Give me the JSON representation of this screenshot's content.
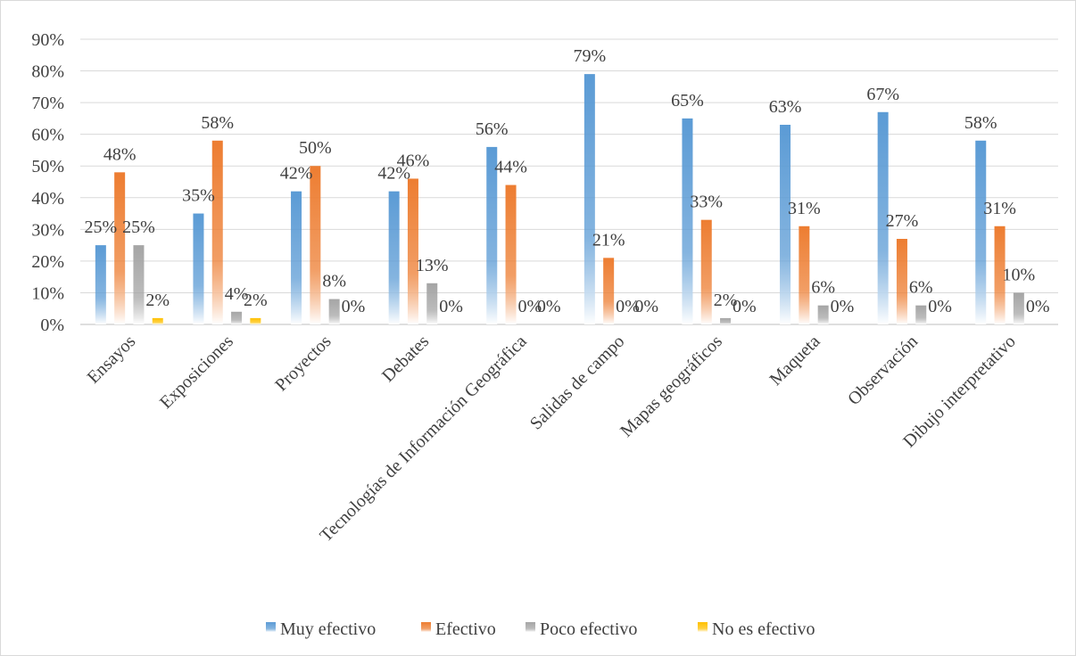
{
  "chart_data": {
    "type": "bar",
    "title": "",
    "xlabel": "",
    "ylabel": "",
    "ylim": [
      0,
      90
    ],
    "y_ticks": [
      "0%",
      "10%",
      "20%",
      "30%",
      "40%",
      "50%",
      "60%",
      "70%",
      "80%",
      "90%"
    ],
    "grid": true,
    "legend_position": "bottom",
    "categories": [
      "Ensayos",
      "Exposiciones",
      "Proyectos",
      "Debates",
      "Tecnologías de Información Geográfica",
      "Salidas de campo",
      "Mapas geográficos",
      "Maqueta",
      "Observación",
      "Dibujo interpretativo"
    ],
    "series": [
      {
        "name": "Muy efectivo",
        "color": "#5b9bd5",
        "values": [
          25,
          35,
          42,
          42,
          56,
          79,
          65,
          63,
          67,
          58
        ],
        "labels": [
          "25%",
          "35%",
          "42%",
          "42%",
          "56%",
          "79%",
          "65%",
          "63%",
          "67%",
          "58%"
        ]
      },
      {
        "name": "Efectivo",
        "color": "#ed7d31",
        "values": [
          48,
          58,
          50,
          46,
          44,
          21,
          33,
          31,
          27,
          31
        ],
        "labels": [
          "48%",
          "58%",
          "50%",
          "46%",
          "44%",
          "21%",
          "33%",
          "31%",
          "27%",
          "31%"
        ]
      },
      {
        "name": "Poco efectivo",
        "color": "#a5a5a5",
        "values": [
          25,
          4,
          8,
          13,
          0,
          0,
          2,
          6,
          6,
          10
        ],
        "labels": [
          "25%",
          "4%",
          "8%",
          "13%",
          "0%",
          "0%",
          "2%",
          "6%",
          "6%",
          "10%"
        ]
      },
      {
        "name": "No es efectivo",
        "color": "#ffc000",
        "values": [
          2,
          2,
          0,
          0,
          0,
          0,
          0,
          0,
          0,
          0
        ],
        "labels": [
          "2%",
          "2%",
          "0%",
          "0%",
          "0%",
          "0%",
          "0%",
          "0%",
          "0%",
          "0%"
        ]
      }
    ]
  }
}
